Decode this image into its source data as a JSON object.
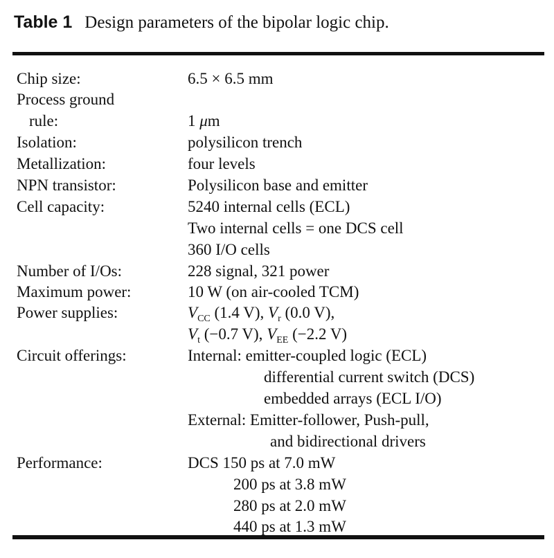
{
  "caption": {
    "label": "Table 1",
    "text": "Design parameters of the bipolar logic chip."
  },
  "rows": {
    "chip_size": {
      "label": "Chip size:",
      "value": "6.5 × 6.5 mm"
    },
    "ground_rule": {
      "label1": "Process ground",
      "label2": "rule:",
      "mu": "μ",
      "unit": "m",
      "num": "1"
    },
    "isolation": {
      "label": "Isolation:",
      "value": "polysilicon trench"
    },
    "metallization": {
      "label": "Metallization:",
      "value": "four levels"
    },
    "npn": {
      "label": "NPN transistor:",
      "value": "Polysilicon base and emitter"
    },
    "cell_capacity": {
      "label": "Cell capacity:",
      "values": [
        "5240 internal cells (ECL)",
        "Two internal cells = one DCS cell",
        "360 I/O cells"
      ]
    },
    "ios": {
      "label": "Number of I/Os:",
      "value": "228 signal, 321 power"
    },
    "max_power": {
      "label": "Maximum power:",
      "value": "10 W (on air-cooled TCM)"
    },
    "power_supplies": {
      "label": "Power supplies:",
      "v": "V",
      "cc_sub": "CC",
      "cc_val": " (1.4 V), ",
      "r_sub": "r",
      "r_val": " (0.0 V),",
      "t_sub": "t",
      "t_val": " (−0.7 V), ",
      "ee_sub": "EE",
      "ee_val": " (−2.2 V)"
    },
    "circuits": {
      "label": "Circuit offerings:",
      "internal": "Internal: emitter-coupled logic (ECL)",
      "internal2": "differential current switch (DCS)",
      "internal3": "embedded arrays (ECL I/O)",
      "external": "External: Emitter-follower, Push-pull,",
      "external2": "and bidirectional drivers"
    },
    "performance": {
      "label": "Performance:",
      "values": [
        "DCS 150 ps at 7.0 mW",
        "200 ps at 3.8 mW",
        "280 ps at 2.0 mW",
        "440 ps at 1.3 mW"
      ]
    }
  }
}
